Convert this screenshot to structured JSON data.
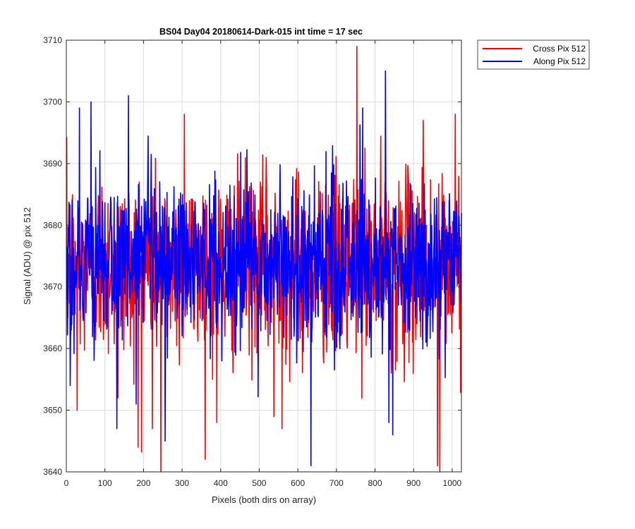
{
  "colors": {
    "cross": "#ff0000",
    "along": "#0000ff",
    "grid": "#dcdcdc",
    "axis": "#262626"
  },
  "chart_data": {
    "type": "line",
    "title": "BS04 Day04 20180614-Dark-015 int time = 17 sec",
    "xlabel": "Pixels (both dirs on array)",
    "ylabel": "Signal (ADU) @ pix 512",
    "xlim": [
      0,
      1024
    ],
    "ylim": [
      3640,
      3710
    ],
    "xticks": [
      0,
      100,
      200,
      300,
      400,
      500,
      600,
      700,
      800,
      900,
      1000
    ],
    "yticks": [
      3640,
      3650,
      3660,
      3670,
      3680,
      3690,
      3700,
      3710
    ],
    "grid": true,
    "legend_position": "outside-top-right",
    "n_points": 1024,
    "series": [
      {
        "name": "Cross Pix 512",
        "color": "#ff0000",
        "mean": 3673.5,
        "noise_std": 7.5,
        "notable_points": [
          [
            752,
            3709
          ],
          [
            244,
            3640
          ],
          [
            967,
            3640
          ],
          [
            185,
            3644
          ],
          [
            961,
            3641
          ],
          [
            27,
            3650
          ],
          [
            133,
            3652
          ],
          [
            222,
            3647
          ],
          [
            389,
            3648
          ],
          [
            537,
            3649
          ],
          [
            558,
            3647
          ],
          [
            305,
            3698
          ],
          [
            924,
            3697
          ],
          [
            1007,
            3698
          ]
        ]
      },
      {
        "name": "Along Pix 512",
        "color": "#0000ff",
        "mean": 3674.0,
        "noise_std": 6.8,
        "notable_points": [
          [
            160,
            3701
          ],
          [
            63,
            3700
          ],
          [
            33,
            3699
          ],
          [
            826,
            3705
          ],
          [
            633,
            3641
          ],
          [
            767,
            3699
          ],
          [
            130,
            3647
          ],
          [
            180,
            3651
          ],
          [
            255,
            3645
          ],
          [
            835,
            3648
          ],
          [
            845,
            3646
          ],
          [
            9,
            3654
          ]
        ]
      }
    ]
  }
}
